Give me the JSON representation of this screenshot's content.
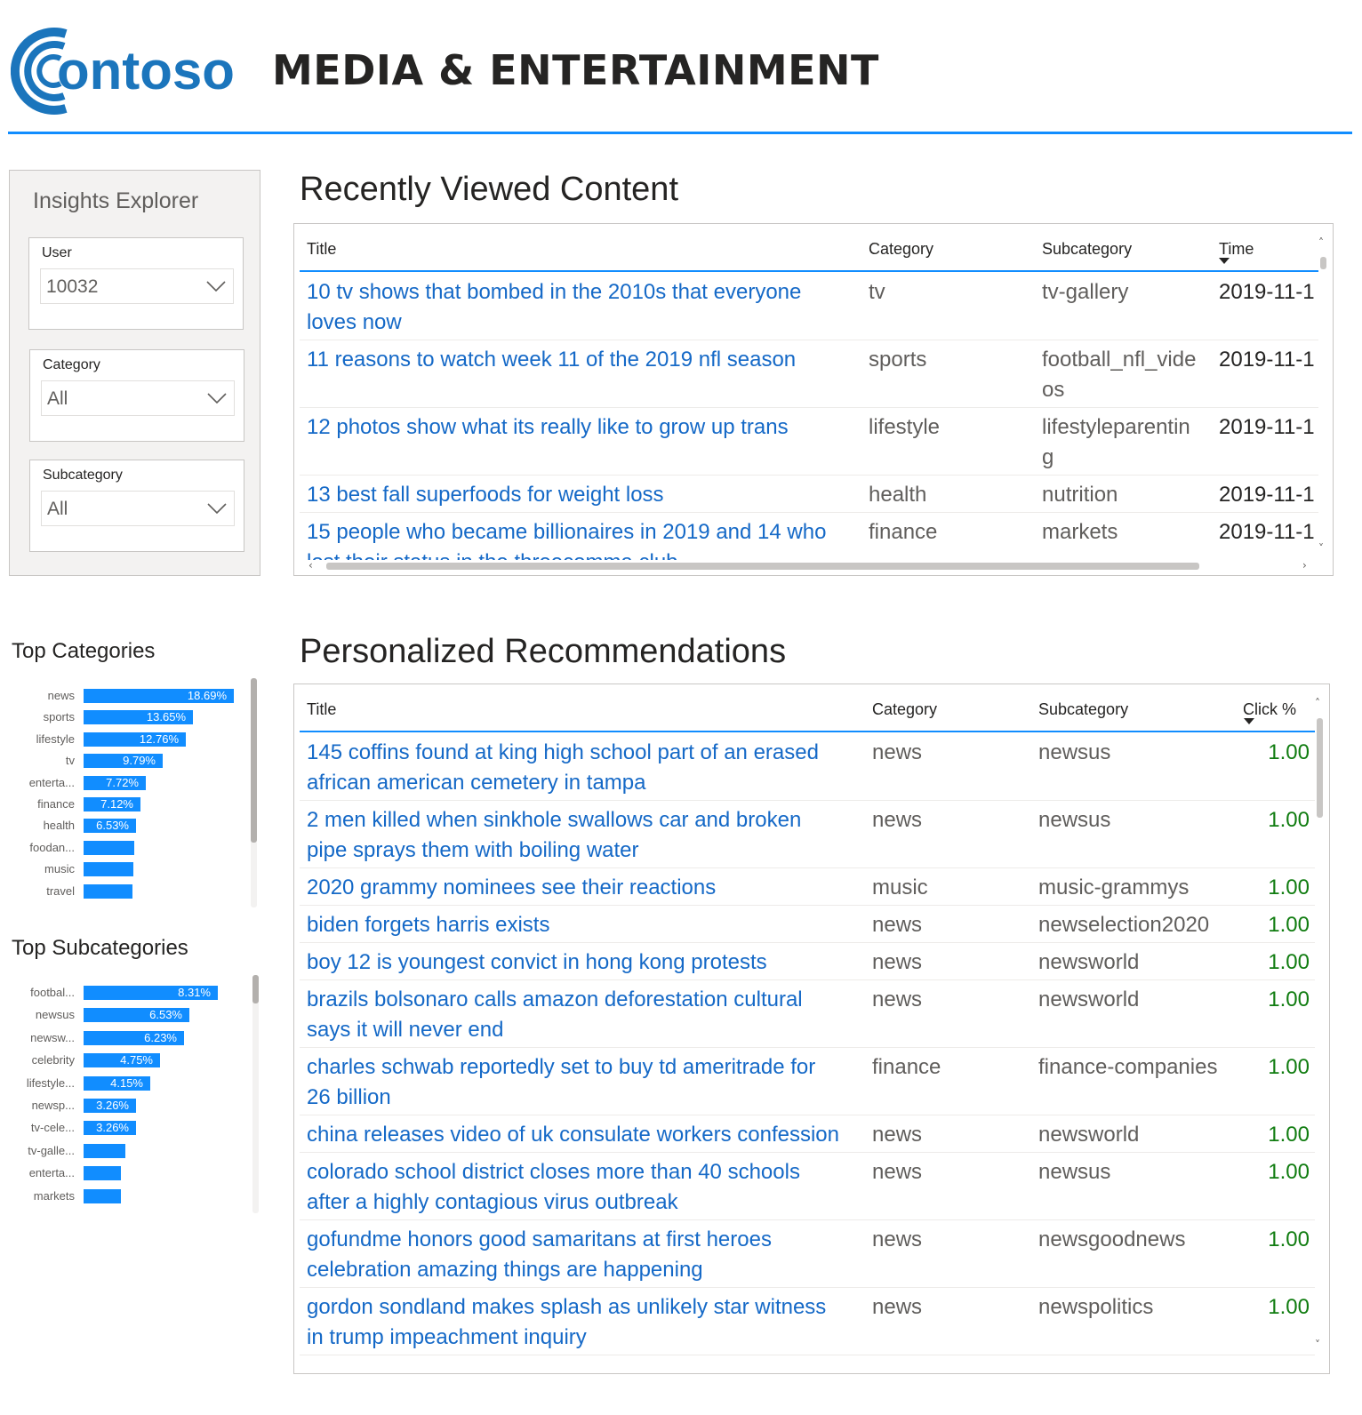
{
  "brand": {
    "logo_text": "ontoso",
    "title": "MEDIA & ENTERTAINMENT",
    "accent": "#118DFF",
    "logo_color": "#1b75bc"
  },
  "filters": {
    "title": "Insights Explorer",
    "user": {
      "label": "User",
      "value": "10032"
    },
    "category": {
      "label": "Category",
      "value": "All"
    },
    "subcategory": {
      "label": "Subcategory",
      "value": "All"
    }
  },
  "recent": {
    "heading": "Recently Viewed Content",
    "columns": {
      "title": "Title",
      "category": "Category",
      "subcategory": "Subcategory",
      "time": "Time"
    },
    "rows": [
      {
        "title": [
          "10 tv shows that bombed in the 2010s that everyone",
          "loves now"
        ],
        "category": "tv",
        "subcategory": [
          "tv-gallery"
        ],
        "time": "2019-11-1"
      },
      {
        "title": [
          "11 reasons to watch week 11 of the 2019 nfl season"
        ],
        "category": "sports",
        "subcategory": [
          "football_nfl_vide",
          "os"
        ],
        "time": "2019-11-1"
      },
      {
        "title": [
          "12 photos show what its really like to grow up trans"
        ],
        "category": "lifestyle",
        "subcategory": [
          "lifestyleparentin",
          "g"
        ],
        "time": "2019-11-1"
      },
      {
        "title": [
          "13 best fall superfoods for weight loss"
        ],
        "category": "health",
        "subcategory": [
          "nutrition"
        ],
        "time": "2019-11-1"
      },
      {
        "title": [
          "15 people who became billionaires in 2019 and 14 who",
          "lost their status in the threecomma club"
        ],
        "category": "finance",
        "subcategory": [
          "markets"
        ],
        "time": "2019-11-1"
      }
    ]
  },
  "recommendations": {
    "heading": "Personalized Recommendations",
    "columns": {
      "title": "Title",
      "category": "Category",
      "subcategory": "Subcategory",
      "click": "Click %"
    },
    "rows": [
      {
        "title": [
          "145 coffins found at king high school part of an erased",
          "african american cemetery in tampa"
        ],
        "category": "news",
        "subcategory": "newsus",
        "click": "1.00"
      },
      {
        "title": [
          "2 men killed when sinkhole swallows car and broken",
          "pipe sprays them with boiling water"
        ],
        "category": "news",
        "subcategory": "newsus",
        "click": "1.00"
      },
      {
        "title": [
          "2020 grammy nominees see their reactions"
        ],
        "category": "music",
        "subcategory": "music-grammys",
        "click": "1.00"
      },
      {
        "title": [
          "biden forgets harris exists"
        ],
        "category": "news",
        "subcategory": "newselection2020",
        "click": "1.00"
      },
      {
        "title": [
          "boy 12 is youngest convict in hong kong protests"
        ],
        "category": "news",
        "subcategory": "newsworld",
        "click": "1.00"
      },
      {
        "title": [
          "brazils bolsonaro calls amazon deforestation cultural",
          "says it will never end"
        ],
        "category": "news",
        "subcategory": "newsworld",
        "click": "1.00"
      },
      {
        "title": [
          "charles schwab reportedly set to buy td ameritrade for",
          "26 billion"
        ],
        "category": "finance",
        "subcategory": "finance-companies",
        "click": "1.00"
      },
      {
        "title": [
          "china releases video of uk consulate workers confession"
        ],
        "category": "news",
        "subcategory": "newsworld",
        "click": "1.00"
      },
      {
        "title": [
          "colorado school district closes more than 40 schools",
          "after a highly contagious virus outbreak"
        ],
        "category": "news",
        "subcategory": "newsus",
        "click": "1.00"
      },
      {
        "title": [
          "gofundme honors good samaritans at first heroes",
          "celebration amazing things are happening"
        ],
        "category": "news",
        "subcategory": "newsgoodnews",
        "click": "1.00"
      },
      {
        "title": [
          "gordon sondland makes splash as unlikely star witness",
          "in trump impeachment inquiry"
        ],
        "category": "news",
        "subcategory": "newspolitics",
        "click": "1.00"
      }
    ]
  },
  "chart_data": [
    {
      "type": "bar",
      "title": "Top Categories",
      "categories": [
        "news",
        "sports",
        "lifestyle",
        "tv",
        "enterta...",
        "finance",
        "health",
        "foodan...",
        "music",
        "travel"
      ],
      "values": [
        18.69,
        13.65,
        12.76,
        9.79,
        7.72,
        7.12,
        6.53,
        6.3,
        6.2,
        6.1
      ],
      "labels": [
        "18.69%",
        "13.65%",
        "12.76%",
        "9.79%",
        "7.72%",
        "7.12%",
        "6.53%",
        "",
        "",
        ""
      ],
      "orientation": "horizontal"
    },
    {
      "type": "bar",
      "title": "Top Subcategories",
      "categories": [
        "footbal...",
        "newsus",
        "newsw...",
        "celebrity",
        "lifestyle...",
        "newsp...",
        "tv-cele...",
        "tv-galle...",
        "enterta...",
        "markets"
      ],
      "values": [
        8.31,
        6.53,
        6.23,
        4.75,
        4.15,
        3.26,
        3.26,
        2.6,
        2.3,
        2.3
      ],
      "labels": [
        "8.31%",
        "6.53%",
        "6.23%",
        "4.75%",
        "4.15%",
        "3.26%",
        "3.26%",
        "",
        "",
        ""
      ],
      "orientation": "horizontal"
    }
  ]
}
